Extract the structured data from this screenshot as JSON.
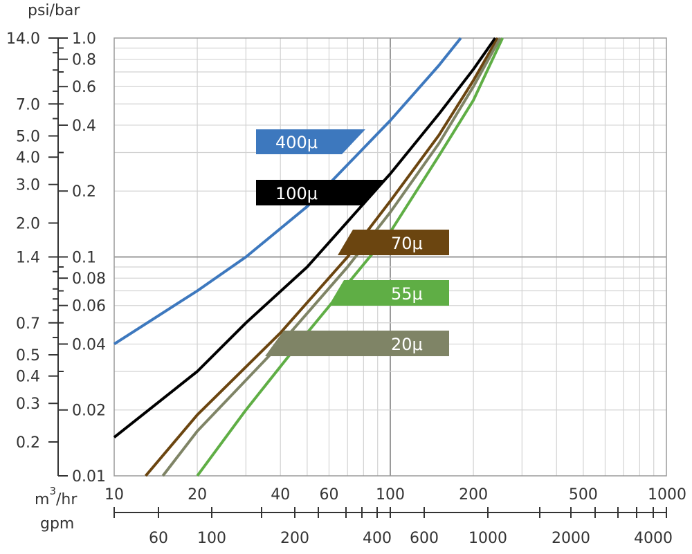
{
  "chart_data": {
    "type": "line",
    "title": "",
    "x_unit_label": "m3/hr",
    "x_unit_label_base": "m",
    "x_unit_label_sup": "3",
    "x_unit_label_suffix": "/hr",
    "x2_unit_label": "gpm",
    "y_unit_label": "psi/bar",
    "x_scale": "log",
    "y_scale": "log",
    "xlim": [
      10,
      1000
    ],
    "ylim": [
      0.01,
      1.0
    ],
    "x_ticks": [
      "10",
      "20",
      "40",
      "60",
      "100",
      "200",
      "500",
      "1000"
    ],
    "x2_ticks": [
      "60",
      "100",
      "200",
      "400",
      "600",
      "1000",
      "2000",
      "4000"
    ],
    "y_bar_ticks": [
      "1.0",
      "0.8",
      "0.6",
      "0.4",
      "0.2",
      "0.1",
      "0.08",
      "0.06",
      "0.04",
      "0.02",
      "0.01"
    ],
    "y_psi_ticks": [
      "14.0",
      "7.0",
      "5.0",
      "4.0",
      "3.0",
      "2.0",
      "1.4",
      "0.7",
      "0.5",
      "0.4",
      "0.3",
      "0.2"
    ],
    "grid": true,
    "series": [
      {
        "name": "400μ",
        "color": "#3d78be",
        "x": [
          10,
          20,
          30,
          50,
          100,
          150,
          180
        ],
        "y": [
          0.04,
          0.07,
          0.1,
          0.17,
          0.42,
          0.75,
          1.0
        ]
      },
      {
        "name": "100μ",
        "color": "#000000",
        "x": [
          10,
          20,
          30,
          50,
          100,
          150,
          200,
          240
        ],
        "y": [
          0.015,
          0.03,
          0.05,
          0.09,
          0.24,
          0.45,
          0.72,
          1.0
        ]
      },
      {
        "name": "70μ",
        "color": "#6b4510",
        "x": [
          13,
          20,
          40,
          70,
          100,
          150,
          200,
          245
        ],
        "y": [
          0.01,
          0.019,
          0.045,
          0.1,
          0.18,
          0.36,
          0.64,
          1.0
        ]
      },
      {
        "name": "55μ",
        "color": "#5fae45",
        "x": [
          20,
          30,
          50,
          100,
          150,
          200,
          255
        ],
        "y": [
          0.01,
          0.02,
          0.045,
          0.13,
          0.29,
          0.52,
          1.0
        ]
      },
      {
        "name": "20μ",
        "color": "#7f8466",
        "x": [
          15,
          20,
          40,
          70,
          100,
          150,
          200,
          250
        ],
        "y": [
          0.01,
          0.016,
          0.04,
          0.09,
          0.16,
          0.33,
          0.6,
          1.0
        ]
      }
    ]
  }
}
